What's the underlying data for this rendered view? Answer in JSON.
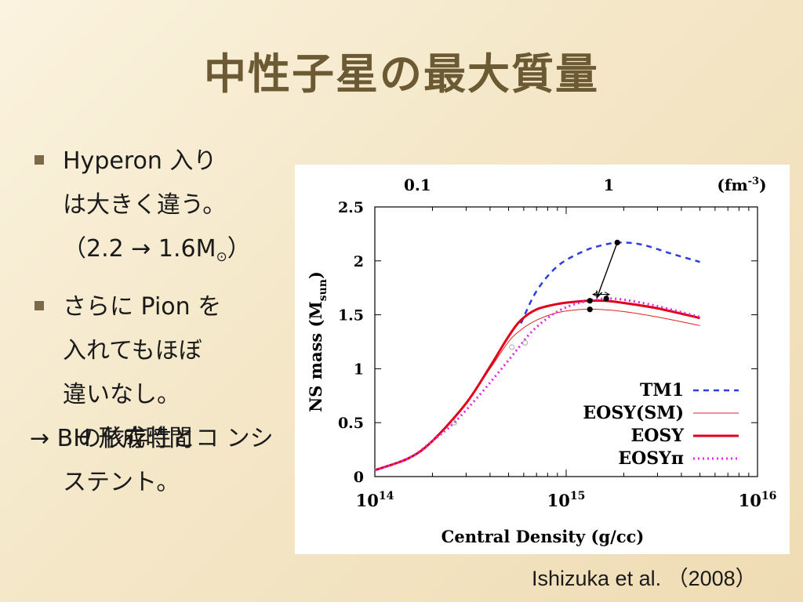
{
  "slide": {
    "title": "中性子星の最大質量",
    "bullets": [
      {
        "lines": [
          "Hyperon 入り",
          "は大きく違う。"
        ],
        "extra_prefix": "（2.2 → 1.6M",
        "extra_sub": "⊙",
        "extra_suffix": "）"
      },
      {
        "lines": [
          "さらに Pion を",
          "入れてもほぼ",
          "違いなし。"
        ]
      }
    ],
    "conclusion": {
      "arrow": "→",
      "lines": [
        " BH 形成時間",
        "の依存性とコ",
        "ンシステント。"
      ]
    },
    "citation": "Ishizuka et al. （2008）"
  },
  "chart_data": {
    "type": "line",
    "xlabel": "Central Density (g/cc)",
    "ylabel": "NS mass (M",
    "ylabel_sub": "sun",
    "ylabel_end": ")",
    "xscale": "log",
    "xlim": [
      100000000000000.0,
      1e+16
    ],
    "ylim": [
      0,
      2.5
    ],
    "x_ticks": [
      {
        "value": 100000000000000.0,
        "base": "10",
        "exp": "14"
      },
      {
        "value": 1000000000000000.0,
        "base": "10",
        "exp": "15"
      },
      {
        "value": 1e+16,
        "base": "10",
        "exp": "16"
      }
    ],
    "y_ticks": [
      "0",
      "0.5",
      "1",
      "1.5",
      "2",
      "2.5"
    ],
    "top_axis_ticks": [
      {
        "label": "0.1",
        "x": 167000000000000.0
      },
      {
        "label": "1",
        "x": 1670000000000000.0
      }
    ],
    "top_axis_unit": "(fm",
    "top_axis_unit_exp": "-3",
    "top_axis_unit_end": ")",
    "legend_position": "bottom-right",
    "series": [
      {
        "name": "TM1",
        "color": "#2b3fe0",
        "style": "dashed",
        "width": 2.5,
        "points": [
          [
            580000000000000.0,
            1.42
          ],
          [
            700000000000000.0,
            1.72
          ],
          [
            900000000000000.0,
            1.95
          ],
          [
            1200000000000000.0,
            2.08
          ],
          [
            1500000000000000.0,
            2.14
          ],
          [
            1900000000000000.0,
            2.17
          ],
          [
            2500000000000000.0,
            2.15
          ],
          [
            3500000000000000.0,
            2.07
          ],
          [
            5000000000000000.0,
            1.99
          ]
        ]
      },
      {
        "name": "EOSY(SM)",
        "color": "#e02020",
        "style": "solid",
        "width": 1,
        "points": [
          [
            100000000000000.0,
            0.06
          ],
          [
            150000000000000.0,
            0.17
          ],
          [
            200000000000000.0,
            0.33
          ],
          [
            300000000000000.0,
            0.68
          ],
          [
            400000000000000.0,
            1.0
          ],
          [
            500000000000000.0,
            1.25
          ],
          [
            580000000000000.0,
            1.36
          ],
          [
            700000000000000.0,
            1.45
          ],
          [
            900000000000000.0,
            1.52
          ],
          [
            1200000000000000.0,
            1.55
          ],
          [
            1500000000000000.0,
            1.55
          ],
          [
            2000000000000000.0,
            1.53
          ],
          [
            3000000000000000.0,
            1.48
          ],
          [
            5000000000000000.0,
            1.4
          ]
        ]
      },
      {
        "name": "EOSY",
        "color": "#e0001a",
        "style": "solid",
        "width": 3,
        "points": [
          [
            100000000000000.0,
            0.06
          ],
          [
            150000000000000.0,
            0.17
          ],
          [
            200000000000000.0,
            0.33
          ],
          [
            300000000000000.0,
            0.68
          ],
          [
            400000000000000.0,
            1.02
          ],
          [
            500000000000000.0,
            1.3
          ],
          [
            580000000000000.0,
            1.45
          ],
          [
            700000000000000.0,
            1.55
          ],
          [
            900000000000000.0,
            1.6
          ],
          [
            1100000000000000.0,
            1.62
          ],
          [
            1300000000000000.0,
            1.63
          ],
          [
            1600000000000000.0,
            1.63
          ],
          [
            2000000000000000.0,
            1.61
          ],
          [
            3000000000000000.0,
            1.56
          ],
          [
            5000000000000000.0,
            1.47
          ]
        ]
      },
      {
        "name": "EOSYπ",
        "color": "#e028e0",
        "style": "dotted",
        "width": 3,
        "points": [
          [
            100000000000000.0,
            0.06
          ],
          [
            150000000000000.0,
            0.17
          ],
          [
            200000000000000.0,
            0.33
          ],
          [
            260000000000000.0,
            0.5
          ],
          [
            350000000000000.0,
            0.75
          ],
          [
            450000000000000.0,
            0.98
          ],
          [
            550000000000000.0,
            1.17
          ],
          [
            650000000000000.0,
            1.33
          ],
          [
            800000000000000.0,
            1.47
          ],
          [
            1000000000000000.0,
            1.57
          ],
          [
            1300000000000000.0,
            1.63
          ],
          [
            1600000000000000.0,
            1.65
          ],
          [
            2000000000000000.0,
            1.64
          ],
          [
            3000000000000000.0,
            1.58
          ],
          [
            5000000000000000.0,
            1.48
          ]
        ]
      }
    ],
    "markers": [
      {
        "x": 1850000000000000.0,
        "y": 2.17
      },
      {
        "x": 1620000000000000.0,
        "y": 1.65
      },
      {
        "x": 1330000000000000.0,
        "y": 1.63
      },
      {
        "x": 1330000000000000.0,
        "y": 1.55
      }
    ],
    "open_markers": [
      {
        "x": 520000000000000.0,
        "y": 1.2
      },
      {
        "x": 610000000000000.0,
        "y": 1.24
      },
      {
        "x": 260000000000000.0,
        "y": 0.5
      }
    ],
    "annotation_arrow": {
      "from": [
        1850000000000000.0,
        2.17
      ],
      "to": [
        1450000000000000.0,
        1.66
      ]
    },
    "small_double_arrow": {
      "from": [
        1380000000000000.0,
        1.66
      ],
      "to": [
        1680000000000000.0,
        1.66
      ]
    }
  }
}
